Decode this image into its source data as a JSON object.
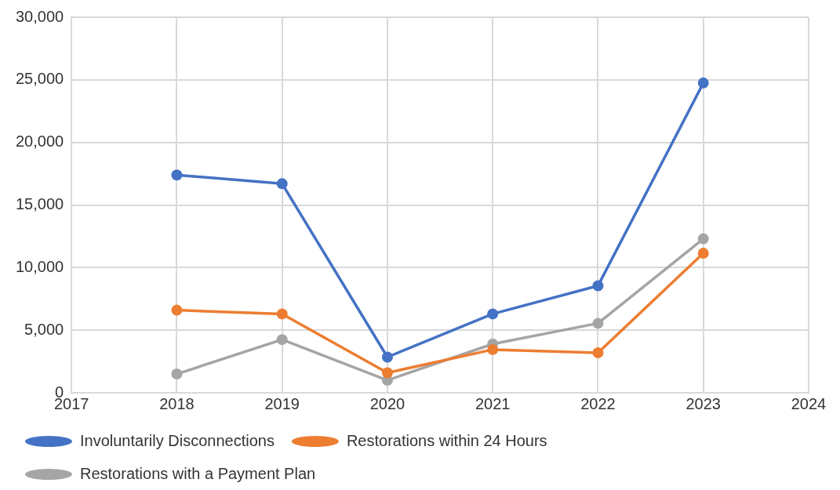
{
  "chart_data": {
    "type": "line",
    "x": [
      2018,
      2019,
      2020,
      2021,
      2022,
      2023
    ],
    "series": [
      {
        "name": "Involuntarily Disconnections",
        "color": "#4472c4",
        "values": [
          17400,
          16700,
          2850,
          6300,
          8550,
          24750
        ]
      },
      {
        "name": "Restorations within 24 Hours",
        "color": "#ed7d31",
        "values": [
          6600,
          6300,
          1600,
          3450,
          3200,
          11150
        ]
      },
      {
        "name": "Restorations with a Payment Plan",
        "color": "#a5a5a5",
        "values": [
          1500,
          4250,
          1000,
          3900,
          5550,
          12300
        ]
      }
    ],
    "xlim": [
      2017,
      2024
    ],
    "xticks": [
      2017,
      2018,
      2019,
      2020,
      2021,
      2022,
      2023,
      2024
    ],
    "ylim": [
      0,
      30000
    ],
    "yticks": [
      {
        "value": 0,
        "label": "0"
      },
      {
        "value": 5000,
        "label": "5,000"
      },
      {
        "value": 10000,
        "label": "10,000"
      },
      {
        "value": 15000,
        "label": "15,000"
      },
      {
        "value": 20000,
        "label": "20,000"
      },
      {
        "value": 25000,
        "label": "25,000"
      },
      {
        "value": 30000,
        "label": "30,000"
      }
    ],
    "grid": true,
    "legend": "bottom",
    "marker": "circle",
    "line_style": "solid"
  }
}
